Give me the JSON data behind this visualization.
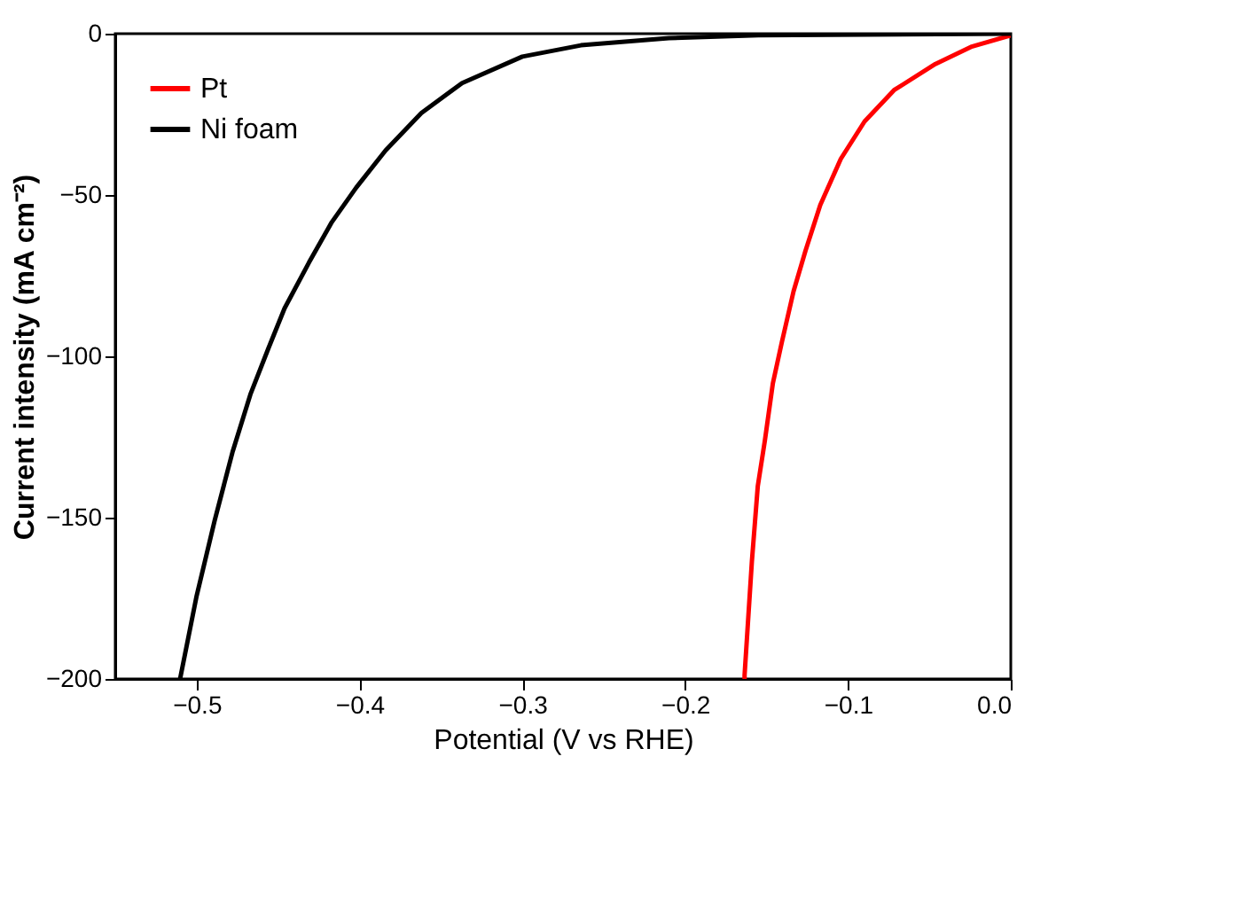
{
  "chart_data": {
    "type": "line",
    "xlabel": "Potential (V vs RHE)",
    "ylabel": "Current intensity (mA cm⁻²)",
    "xlim": [
      -0.55,
      0.0
    ],
    "ylim": [
      -200,
      0
    ],
    "xticks": [
      -0.5,
      -0.4,
      -0.3,
      -0.2,
      -0.1,
      {
        "value": 0,
        "label": "0.0"
      }
    ],
    "yticks": [
      -200,
      -150,
      -100,
      -50,
      0
    ],
    "grid": false,
    "legend": "top left",
    "marker": "none",
    "line_style": "solid",
    "series": [
      {
        "name": "Pt",
        "color": "#ff0000",
        "x": [
          -0.1635,
          -0.1635,
          -0.159,
          -0.1554,
          -0.151,
          -0.1461,
          -0.1407,
          -0.1334,
          -0.1261,
          -0.117,
          -0.1044,
          -0.0898,
          -0.0717,
          -0.0463,
          -0.0245,
          0.0
        ],
        "values": [
          -200,
          -198.8,
          -163.5,
          -140.3,
          -126,
          -108.3,
          -95.8,
          -79.8,
          -67.3,
          -53.1,
          -38.8,
          -27.2,
          -17.5,
          -9.4,
          -4.1,
          -0.5
        ]
      },
      {
        "name": "Ni foam",
        "color": "#000000",
        "x": [
          -0.5102,
          -0.5,
          -0.489,
          -0.478,
          -0.467,
          -0.456,
          -0.446,
          -0.431,
          -0.417,
          -0.402,
          -0.384,
          -0.362,
          -0.337,
          -0.3,
          -0.264,
          -0.21,
          -0.155,
          0.0
        ],
        "values": [
          -200,
          -174.2,
          -151,
          -129.7,
          -111.8,
          -97.6,
          -85.1,
          -70.9,
          -58.4,
          -47.7,
          -36.2,
          -24.6,
          -15.3,
          -7.1,
          -3.6,
          -1.4,
          -0.5,
          0
        ]
      }
    ]
  }
}
